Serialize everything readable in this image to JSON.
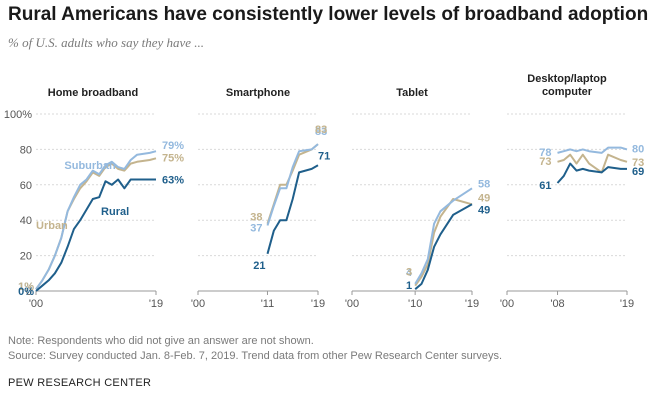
{
  "title": "Rural Americans have consistently lower levels of broadband adoption",
  "subtitle": "% of U.S. adults who say they have ...",
  "note": "Note: Respondents who did not give an answer are not shown.",
  "source": "Source: Survey conducted Jan. 8-Feb. 7, 2019. Trend data from other Pew Research Center surveys.",
  "brand": "PEW RESEARCH CENTER",
  "colors": {
    "suburban": "#94b9de",
    "urban": "#c4b48e",
    "rural": "#1f5f8b",
    "axis": "#999999",
    "grid": "#d9d9d9"
  },
  "chart_data": [
    {
      "type": "line",
      "title": "Home broadband",
      "ylim": [
        0,
        100
      ],
      "y_ticks": [
        "100%",
        "80",
        "60",
        "40",
        "20",
        "0"
      ],
      "x_tick_labels": [
        "'00",
        "'19"
      ],
      "xlim": [
        2000,
        2019
      ],
      "series": [
        {
          "name": "Suburban",
          "x": [
            2000,
            2001,
            2002,
            2003,
            2004,
            2005,
            2006,
            2007,
            2008,
            2009,
            2010,
            2011,
            2012,
            2013,
            2014,
            2015,
            2016,
            2018,
            2019
          ],
          "values": [
            1,
            6,
            12,
            20,
            30,
            45,
            53,
            60,
            63,
            68,
            66,
            71,
            73,
            70,
            69,
            74,
            77,
            78,
            79
          ],
          "start_label": "1%",
          "end_label": "79%"
        },
        {
          "name": "Urban",
          "x": [
            2000,
            2001,
            2002,
            2003,
            2004,
            2005,
            2006,
            2007,
            2008,
            2009,
            2010,
            2011,
            2012,
            2013,
            2014,
            2015,
            2016,
            2018,
            2019
          ],
          "values": [
            1,
            6,
            12,
            20,
            30,
            45,
            52,
            58,
            62,
            67,
            65,
            70,
            72,
            69,
            68,
            72,
            73,
            74,
            75
          ],
          "start_label": "1%",
          "end_label": "75%"
        },
        {
          "name": "Rural",
          "x": [
            2000,
            2001,
            2002,
            2003,
            2004,
            2005,
            2006,
            2007,
            2008,
            2009,
            2010,
            2011,
            2012,
            2013,
            2014,
            2015,
            2016,
            2018,
            2019
          ],
          "values": [
            0,
            3,
            6,
            10,
            16,
            25,
            35,
            40,
            46,
            52,
            53,
            62,
            60,
            63,
            58,
            63,
            63,
            63,
            63
          ],
          "start_label": "0%",
          "end_label": "63%"
        }
      ],
      "annotations": [
        {
          "text": "Suburban",
          "series": "Suburban"
        },
        {
          "text": "Urban",
          "series": "Urban"
        },
        {
          "text": "Rural",
          "series": "Rural"
        }
      ]
    },
    {
      "type": "line",
      "title": "Smartphone",
      "ylim": [
        0,
        100
      ],
      "x_tick_labels": [
        "'00",
        "'11",
        "'19"
      ],
      "xlim": [
        2000,
        2019
      ],
      "series": [
        {
          "name": "Suburban",
          "x": [
            2011,
            2012,
            2013,
            2014,
            2015,
            2016,
            2018,
            2019
          ],
          "values": [
            37,
            48,
            58,
            58,
            70,
            79,
            80,
            83
          ],
          "start_label": "37",
          "end_label": "83"
        },
        {
          "name": "Urban",
          "x": [
            2011,
            2012,
            2013,
            2014,
            2015,
            2016,
            2018,
            2019
          ],
          "values": [
            38,
            49,
            60,
            60,
            68,
            77,
            80,
            83
          ],
          "start_label": "38",
          "end_label": "83"
        },
        {
          "name": "Rural",
          "x": [
            2011,
            2012,
            2013,
            2014,
            2015,
            2016,
            2018,
            2019
          ],
          "values": [
            21,
            34,
            40,
            40,
            52,
            67,
            69,
            71
          ],
          "start_label": "21",
          "end_label": "71"
        }
      ]
    },
    {
      "type": "line",
      "title": "Tablet",
      "ylim": [
        0,
        100
      ],
      "x_tick_labels": [
        "'00",
        "'10",
        "'19"
      ],
      "xlim": [
        2000,
        2019
      ],
      "series": [
        {
          "name": "Suburban",
          "x": [
            2010,
            2011,
            2012,
            2013,
            2014,
            2016,
            2019
          ],
          "values": [
            4,
            10,
            18,
            38,
            45,
            51,
            58
          ],
          "start_label": "4",
          "end_label": "58"
        },
        {
          "name": "Urban",
          "x": [
            2010,
            2011,
            2012,
            2013,
            2014,
            2016,
            2019
          ],
          "values": [
            3,
            8,
            15,
            33,
            42,
            52,
            49
          ],
          "start_label": "3",
          "end_label": "49"
        },
        {
          "name": "Rural",
          "x": [
            2010,
            2011,
            2012,
            2013,
            2014,
            2016,
            2019
          ],
          "values": [
            1,
            4,
            12,
            25,
            32,
            43,
            49
          ],
          "start_label": "1",
          "end_label": "49"
        }
      ]
    },
    {
      "type": "line",
      "title": "Desktop/laptop computer",
      "title_lines": [
        "Desktop/laptop",
        "computer"
      ],
      "ylim": [
        0,
        100
      ],
      "x_tick_labels": [
        "'00",
        "'08",
        "'19"
      ],
      "xlim": [
        2000,
        2019
      ],
      "series": [
        {
          "name": "Suburban",
          "x": [
            2008,
            2009,
            2010,
            2011,
            2012,
            2013,
            2015,
            2016,
            2018,
            2019
          ],
          "values": [
            78,
            79,
            80,
            79,
            80,
            79,
            78,
            81,
            81,
            80
          ],
          "start_label": "78",
          "end_label": "80"
        },
        {
          "name": "Urban",
          "x": [
            2008,
            2009,
            2010,
            2011,
            2012,
            2013,
            2015,
            2016,
            2018,
            2019
          ],
          "values": [
            73,
            74,
            77,
            72,
            77,
            72,
            67,
            77,
            74,
            73
          ],
          "start_label": "73",
          "end_label": "73"
        },
        {
          "name": "Rural",
          "x": [
            2008,
            2009,
            2010,
            2011,
            2012,
            2013,
            2015,
            2016,
            2018,
            2019
          ],
          "values": [
            61,
            65,
            72,
            68,
            69,
            68,
            67,
            70,
            69,
            69
          ],
          "start_label": "61",
          "end_label": "69"
        }
      ]
    }
  ]
}
